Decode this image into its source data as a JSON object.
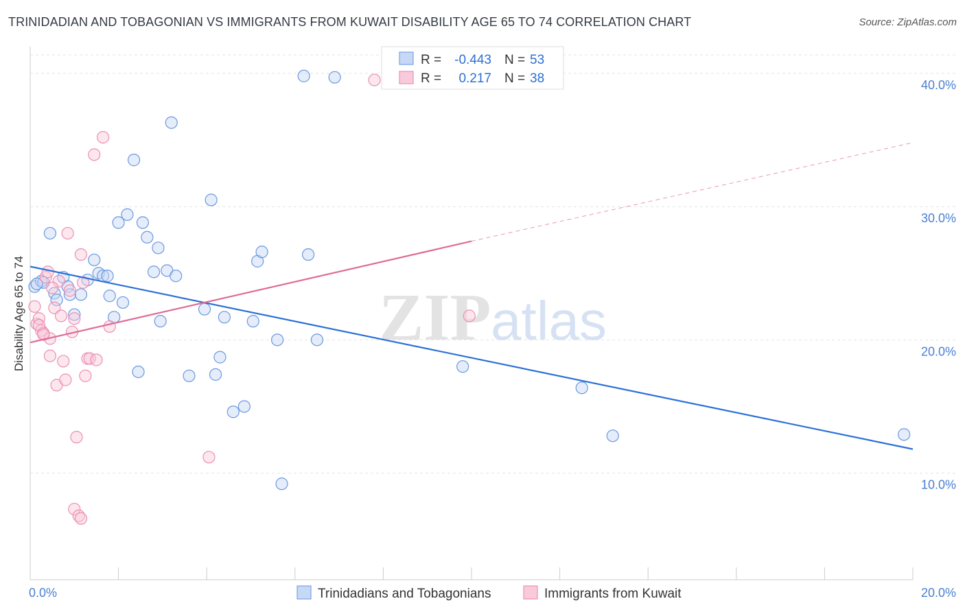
{
  "header": {
    "title": "TRINIDADIAN AND TOBAGONIAN VS IMMIGRANTS FROM KUWAIT DISABILITY AGE 65 TO 74 CORRELATION CHART",
    "source": "Source: ZipAtlas.com"
  },
  "watermark": {
    "zip": "ZIP",
    "atlas": "atlas"
  },
  "colors": {
    "blue": "#5b8fe0",
    "blue_line": "#2a6fd6",
    "pink": "#ef8fb0",
    "pink_line": "#e06a95",
    "tick_text": "#4a7fd0",
    "grid": "#e3e3e3"
  },
  "chart_data": {
    "type": "scatter",
    "title": "TRINIDADIAN AND TOBAGONIAN VS IMMIGRANTS FROM KUWAIT DISABILITY AGE 65 TO 74 CORRELATION CHART",
    "xlabel": "",
    "ylabel": "Disability Age 65 to 74",
    "xlim": [
      0,
      20
    ],
    "ylim": [
      2,
      42
    ],
    "x_tick_labels": [
      "0.0%",
      "20.0%"
    ],
    "y_ticks": [
      10,
      20,
      30,
      40
    ],
    "y_tick_labels": [
      "10.0%",
      "20.0%",
      "30.0%",
      "40.0%"
    ],
    "grid": true,
    "legend_position": "bottom-center",
    "stats": [
      {
        "r_label": "R =",
        "r": "-0.443",
        "n_label": "N =",
        "n": "53"
      },
      {
        "r_label": "R =",
        "r": "0.217",
        "n_label": "N =",
        "n": "38"
      }
    ],
    "series": [
      {
        "name": "Trinidadians and Tobagonians",
        "color": "#5b8fe0",
        "points": [
          [
            0.1,
            24.0
          ],
          [
            0.25,
            24.4
          ],
          [
            0.3,
            24.3
          ],
          [
            0.45,
            28.0
          ],
          [
            0.55,
            23.5
          ],
          [
            0.6,
            23.0
          ],
          [
            0.75,
            24.7
          ],
          [
            0.85,
            24.0
          ],
          [
            0.9,
            23.4
          ],
          [
            1.0,
            21.9
          ],
          [
            1.15,
            23.4
          ],
          [
            1.3,
            24.5
          ],
          [
            1.45,
            26.0
          ],
          [
            1.55,
            25.0
          ],
          [
            1.65,
            24.8
          ],
          [
            1.75,
            24.8
          ],
          [
            1.8,
            23.3
          ],
          [
            1.9,
            21.7
          ],
          [
            2.1,
            22.8
          ],
          [
            2.0,
            28.8
          ],
          [
            2.2,
            29.4
          ],
          [
            2.35,
            33.5
          ],
          [
            2.45,
            17.6
          ],
          [
            2.55,
            28.8
          ],
          [
            2.65,
            27.7
          ],
          [
            2.8,
            25.1
          ],
          [
            2.9,
            26.9
          ],
          [
            2.95,
            21.4
          ],
          [
            3.1,
            25.2
          ],
          [
            3.3,
            24.8
          ],
          [
            3.2,
            36.3
          ],
          [
            3.6,
            17.3
          ],
          [
            3.95,
            22.3
          ],
          [
            4.1,
            30.5
          ],
          [
            4.2,
            17.4
          ],
          [
            4.3,
            18.7
          ],
          [
            4.4,
            21.7
          ],
          [
            4.6,
            14.6
          ],
          [
            4.85,
            15.0
          ],
          [
            5.05,
            21.4
          ],
          [
            5.15,
            25.9
          ],
          [
            5.25,
            26.6
          ],
          [
            5.6,
            20.0
          ],
          [
            5.7,
            9.2
          ],
          [
            6.2,
            39.8
          ],
          [
            6.3,
            26.4
          ],
          [
            6.5,
            20.0
          ],
          [
            6.9,
            39.7
          ],
          [
            9.8,
            18.0
          ],
          [
            12.5,
            16.4
          ],
          [
            13.2,
            12.8
          ],
          [
            19.8,
            12.9
          ],
          [
            0.15,
            24.2
          ]
        ]
      },
      {
        "name": "Immigrants from Kuwait",
        "color": "#ef8fb0",
        "points": [
          [
            0.1,
            22.5
          ],
          [
            0.15,
            21.2
          ],
          [
            0.2,
            21.6
          ],
          [
            0.25,
            20.7
          ],
          [
            0.3,
            20.5
          ],
          [
            0.35,
            24.7
          ],
          [
            0.4,
            25.1
          ],
          [
            0.45,
            18.8
          ],
          [
            0.45,
            20.1
          ],
          [
            0.55,
            22.4
          ],
          [
            0.6,
            16.6
          ],
          [
            0.65,
            24.4
          ],
          [
            0.7,
            21.8
          ],
          [
            0.75,
            18.4
          ],
          [
            0.8,
            17.0
          ],
          [
            0.85,
            28.0
          ],
          [
            0.9,
            23.7
          ],
          [
            0.95,
            20.6
          ],
          [
            1.0,
            21.6
          ],
          [
            1.05,
            12.7
          ],
          [
            1.0,
            7.3
          ],
          [
            1.1,
            6.8
          ],
          [
            1.15,
            6.6
          ],
          [
            1.15,
            26.4
          ],
          [
            1.25,
            17.3
          ],
          [
            1.3,
            18.6
          ],
          [
            1.35,
            18.6
          ],
          [
            1.45,
            33.9
          ],
          [
            1.5,
            18.5
          ],
          [
            1.65,
            35.2
          ],
          [
            1.8,
            21.0
          ],
          [
            4.05,
            11.2
          ],
          [
            7.8,
            39.5
          ],
          [
            9.95,
            21.8
          ],
          [
            0.2,
            21.1
          ],
          [
            0.3,
            20.4
          ],
          [
            0.5,
            23.9
          ],
          [
            1.2,
            24.3
          ]
        ]
      }
    ],
    "trend_lines": [
      {
        "series": "Trinidadians and Tobagonians",
        "x": [
          0,
          20
        ],
        "y": [
          25.5,
          11.8
        ]
      },
      {
        "series": "Immigrants from Kuwait",
        "x": [
          0,
          10
        ],
        "y": [
          19.8,
          27.4
        ],
        "dashed_extension_to": [
          20,
          34.8
        ]
      }
    ]
  }
}
